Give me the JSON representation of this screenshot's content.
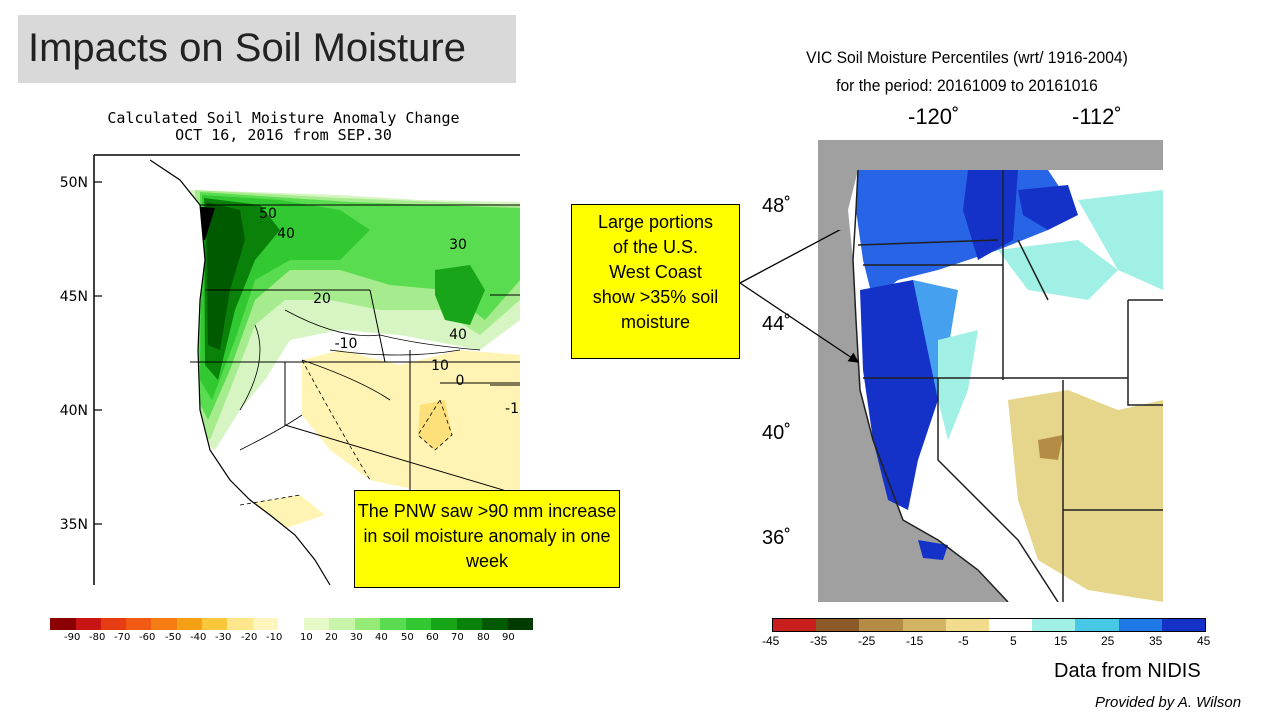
{
  "slide": {
    "title": "Impacts on Soil Moisture",
    "data_source": "Data from NIDIS",
    "credit": "Provided by A. Wilson"
  },
  "left_map": {
    "title_line1": "Calculated Soil Moisture Anomaly Change",
    "title_line2": "OCT 16, 2016 from SEP.30",
    "lat_labels": [
      "50N",
      "45N",
      "40N",
      "35N"
    ],
    "contour_labels": [
      "50",
      "40",
      "30",
      "20",
      "40",
      "-10",
      "10",
      "0",
      "-1"
    ],
    "colorbar_labels": [
      "-90",
      "-80",
      "-70",
      "-60",
      "-50",
      "-40",
      "-30",
      "-20",
      "-10",
      "10",
      "20",
      "30",
      "40",
      "50",
      "60",
      "70",
      "80",
      "90"
    ],
    "colorbar_colors": [
      "#8b0000",
      "#c81414",
      "#e63c14",
      "#f05a14",
      "#f57d14",
      "#f5a014",
      "#fac83c",
      "#fde68c",
      "#fff5be",
      "#ffffff",
      "#e6fac8",
      "#c8f5aa",
      "#96eb78",
      "#5adc50",
      "#32c832",
      "#19a519",
      "#0a820a",
      "#005a00",
      "#003c00"
    ]
  },
  "right_map": {
    "title_line1": "VIC Soil Moisture Percentiles (wrt/ 1916-2004)",
    "title_line2": "for the period:  20161009  to  20161016",
    "lon_labels": [
      "-120˚",
      "-112˚"
    ],
    "lat_labels": [
      "48˚",
      "44˚",
      "40˚",
      "36˚"
    ],
    "colorbar_labels": [
      "-45",
      "-35",
      "-25",
      "-15",
      "-5",
      "5",
      "15",
      "25",
      "35",
      "45"
    ],
    "colorbar_colors": [
      "#c81e1e",
      "#8c5a28",
      "#b48c46",
      "#d2b464",
      "#f0dc8c",
      "#ffffff",
      "#a0f0e6",
      "#46c8e6",
      "#1e78e6",
      "#1432c8"
    ]
  },
  "callouts": {
    "pnw": "The PNW saw >90 mm increase in soil moisture anomaly in one week",
    "west_coast": [
      "Large portions",
      "of the U.S.",
      "West Coast",
      "show >35% soil",
      "moisture"
    ]
  }
}
